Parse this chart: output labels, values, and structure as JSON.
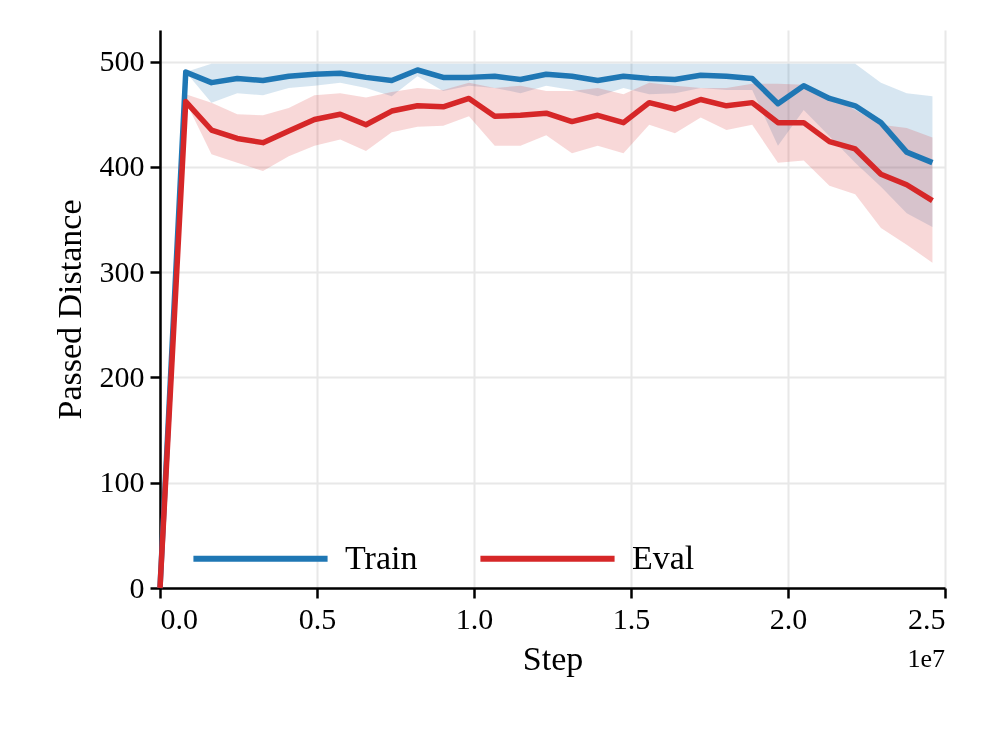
{
  "chart_data": {
    "type": "line",
    "xlabel": "Step",
    "ylabel": "Passed Distance",
    "annotations": [
      "1e7"
    ],
    "x": [
      0,
      0.082,
      0.164,
      0.246,
      0.328,
      0.41,
      0.492,
      0.574,
      0.656,
      0.738,
      0.82,
      0.902,
      0.984,
      1.066,
      1.148,
      1.23,
      1.312,
      1.394,
      1.476,
      1.558,
      1.64,
      1.722,
      1.804,
      1.886,
      1.968,
      2.05,
      2.132,
      2.214,
      2.296,
      2.378,
      2.46
    ],
    "series": [
      {
        "name": "Train",
        "color": "#1f77b4",
        "values": [
          0,
          490,
          480,
          484,
          482,
          486,
          488,
          489,
          485,
          482,
          492,
          485,
          485,
          486,
          483,
          488,
          486,
          482,
          486,
          484,
          483,
          487,
          486,
          484,
          460,
          477,
          465,
          458,
          442,
          414,
          404
        ],
        "lower": [
          0,
          490,
          461,
          470,
          468,
          475,
          477,
          480,
          475,
          467,
          486,
          472,
          477,
          475,
          470,
          477,
          473,
          467,
          475,
          469,
          470,
          475,
          473,
          473,
          420,
          454,
          429,
          404,
          381,
          356,
          343
        ],
        "upper": [
          0,
          490,
          498,
          498,
          498,
          498,
          498,
          498,
          498,
          498,
          498,
          498,
          498,
          498,
          498,
          498,
          498,
          498,
          498,
          498,
          498,
          498,
          498,
          498,
          498,
          498,
          498,
          498,
          480,
          470,
          467
        ]
      },
      {
        "name": "Eval",
        "color": "#d62728",
        "values": [
          0,
          462,
          435,
          427,
          423,
          434,
          445,
          450,
          440,
          453,
          458,
          457,
          465,
          448,
          449,
          451,
          443,
          449,
          442,
          461,
          455,
          464,
          458,
          461,
          442,
          442,
          424,
          417,
          393,
          383,
          368
        ],
        "lower": [
          0,
          462,
          412,
          404,
          396,
          410,
          420,
          426,
          415,
          433,
          438,
          439,
          448,
          420,
          420,
          430,
          413,
          420,
          413,
          440,
          432,
          447,
          435,
          440,
          404,
          406,
          382,
          374,
          342,
          326,
          309
        ],
        "upper": [
          0,
          469,
          461,
          450,
          449,
          456,
          468,
          470,
          466,
          471,
          475,
          473,
          480,
          475,
          477,
          472,
          472,
          475,
          469,
          480,
          477,
          475,
          475,
          479,
          479,
          478,
          467,
          454,
          440,
          437,
          428
        ]
      }
    ],
    "xlim": [
      0,
      2.5
    ],
    "ylim": [
      0,
      530
    ],
    "xticks": [
      {
        "value": 0,
        "label": "0.0"
      },
      {
        "value": 0.5,
        "label": "0.5"
      },
      {
        "value": 1,
        "label": "1.0"
      },
      {
        "value": 1.5,
        "label": "1.5"
      },
      {
        "value": 2,
        "label": "2.0"
      },
      {
        "value": 2.5,
        "label": "2.5"
      }
    ],
    "yticks": [
      0,
      100,
      200,
      300,
      400,
      500
    ],
    "grid": true,
    "legend": "bottom left",
    "line_style": "solid",
    "marker": "none"
  }
}
